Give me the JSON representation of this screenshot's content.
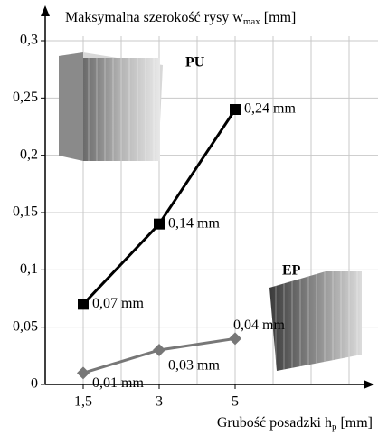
{
  "chart_data": {
    "type": "line",
    "y_label": "Maksymalna szerokość rysy w",
    "y_label_sub": "max",
    "y_label_unit": "[mm]",
    "x_label": "Grubość posadzki h",
    "x_label_sub": "p",
    "x_label_unit": "[mm]",
    "categories": [
      "1,5",
      "3",
      "5",
      null
    ],
    "series": [
      {
        "name": "PU",
        "color": "#000000",
        "marker": "square",
        "values": [
          0.07,
          0.14,
          0.24,
          null
        ],
        "value_labels": [
          "0,07 mm",
          "0,14 mm",
          "0,24 mm",
          null
        ]
      },
      {
        "name": "EP",
        "color": "#777777",
        "marker": "diamond",
        "values": [
          0.01,
          0.03,
          0.04,
          null
        ],
        "value_labels": [
          "0,01 mm",
          "0,03 mm",
          "0,04 mm",
          null
        ]
      }
    ],
    "ylim": [
      0,
      0.3
    ],
    "yticks": [
      0,
      {
        "value": 0.05,
        "label": "0,05"
      },
      {
        "value": 0.1,
        "label": "0,1"
      },
      {
        "value": 0.15,
        "label": "0,15"
      },
      {
        "value": 0.2,
        "label": "0,2"
      },
      {
        "value": 0.25,
        "label": "0,25"
      },
      {
        "value": 0.3,
        "label": "0,3"
      }
    ],
    "grid": true
  }
}
